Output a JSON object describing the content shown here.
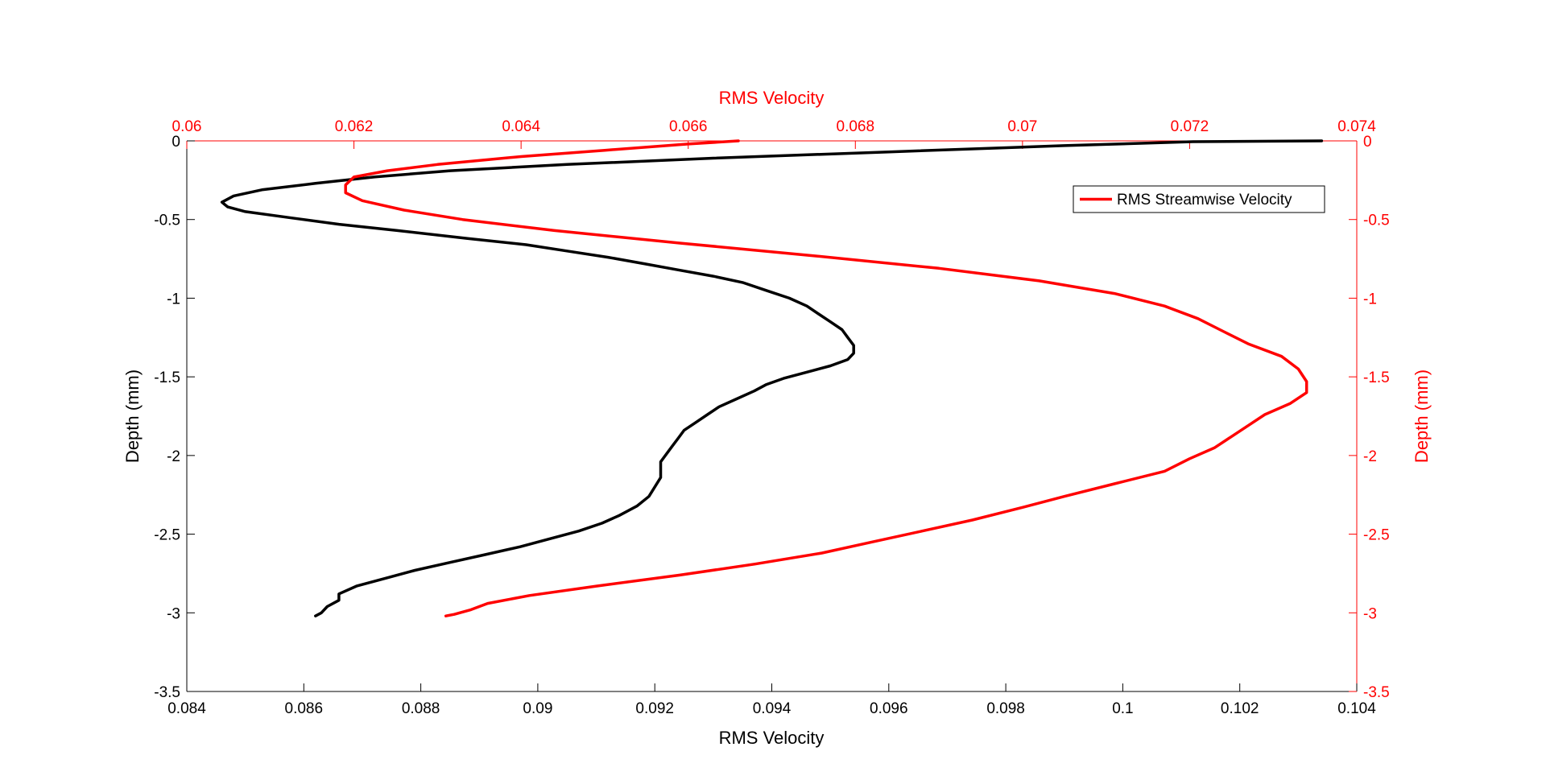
{
  "chart_data": {
    "type": "line",
    "grid": false,
    "legend": {
      "position": "top-right",
      "entries": [
        "RMS Streamwise Velocity"
      ]
    },
    "axes": {
      "bottom": {
        "label": "RMS Velocity",
        "range": [
          0.084,
          0.104
        ],
        "ticks": [
          "0.084",
          "0.086",
          "0.088",
          "0.09",
          "0.092",
          "0.094",
          "0.096",
          "0.098",
          "0.1",
          "0.102",
          "0.104"
        ],
        "color": "#000000"
      },
      "top": {
        "label": "RMS Velocity",
        "range": [
          0.06,
          0.074
        ],
        "ticks": [
          "0.06",
          "0.062",
          "0.064",
          "0.066",
          "0.068",
          "0.07",
          "0.072",
          "0.074"
        ],
        "color": "#ff0000"
      },
      "left": {
        "label": "Depth (mm)",
        "range": [
          -3.5,
          0
        ],
        "ticks": [
          "0",
          "-0.5",
          "-1",
          "-1.5",
          "-2",
          "-2.5",
          "-3",
          "-3.5"
        ],
        "color": "#000000"
      },
      "right": {
        "label": "Depth (mm)",
        "range": [
          -3.5,
          0
        ],
        "ticks": [
          "0",
          "-0.5",
          "-1",
          "-1.5",
          "-2",
          "-2.5",
          "-3",
          "-3.5"
        ],
        "color": "#ff0000"
      }
    },
    "series": [
      {
        "axis_x": "bottom",
        "axis_y": "left",
        "color": "#000000",
        "points": [
          [
            0.1034,
            0
          ],
          [
            0.1012,
            -0.005
          ],
          [
            0.099,
            -0.03
          ],
          [
            0.096,
            -0.07
          ],
          [
            0.093,
            -0.11
          ],
          [
            0.0905,
            -0.15
          ],
          [
            0.0885,
            -0.19
          ],
          [
            0.0872,
            -0.23
          ],
          [
            0.0862,
            -0.27
          ],
          [
            0.0853,
            -0.31
          ],
          [
            0.0848,
            -0.35
          ],
          [
            0.0846,
            -0.39
          ],
          [
            0.0847,
            -0.42
          ],
          [
            0.085,
            -0.45
          ],
          [
            0.0858,
            -0.49
          ],
          [
            0.0866,
            -0.53
          ],
          [
            0.0876,
            -0.57
          ],
          [
            0.0888,
            -0.62
          ],
          [
            0.0898,
            -0.66
          ],
          [
            0.0905,
            -0.7
          ],
          [
            0.0912,
            -0.74
          ],
          [
            0.0918,
            -0.78
          ],
          [
            0.0924,
            -0.82
          ],
          [
            0.093,
            -0.86
          ],
          [
            0.0935,
            -0.9
          ],
          [
            0.0939,
            -0.95
          ],
          [
            0.0943,
            -1.0
          ],
          [
            0.0946,
            -1.05
          ],
          [
            0.0948,
            -1.1
          ],
          [
            0.095,
            -1.15
          ],
          [
            0.0952,
            -1.2
          ],
          [
            0.0953,
            -1.25
          ],
          [
            0.0954,
            -1.3
          ],
          [
            0.0954,
            -1.35
          ],
          [
            0.0953,
            -1.39
          ],
          [
            0.095,
            -1.43
          ],
          [
            0.0946,
            -1.47
          ],
          [
            0.0942,
            -1.51
          ],
          [
            0.0939,
            -1.55
          ],
          [
            0.0937,
            -1.59
          ],
          [
            0.0934,
            -1.64
          ],
          [
            0.0931,
            -1.69
          ],
          [
            0.0929,
            -1.74
          ],
          [
            0.0927,
            -1.79
          ],
          [
            0.0925,
            -1.84
          ],
          [
            0.0924,
            -1.89
          ],
          [
            0.0923,
            -1.94
          ],
          [
            0.0922,
            -1.99
          ],
          [
            0.0921,
            -2.04
          ],
          [
            0.0921,
            -2.09
          ],
          [
            0.0921,
            -2.14
          ],
          [
            0.092,
            -2.2
          ],
          [
            0.0919,
            -2.26
          ],
          [
            0.0917,
            -2.32
          ],
          [
            0.0914,
            -2.38
          ],
          [
            0.0911,
            -2.43
          ],
          [
            0.0907,
            -2.48
          ],
          [
            0.0902,
            -2.53
          ],
          [
            0.0897,
            -2.58
          ],
          [
            0.0891,
            -2.63
          ],
          [
            0.0885,
            -2.68
          ],
          [
            0.0879,
            -2.73
          ],
          [
            0.0874,
            -2.78
          ],
          [
            0.0869,
            -2.83
          ],
          [
            0.0866,
            -2.88
          ],
          [
            0.0866,
            -2.92
          ],
          [
            0.0864,
            -2.96
          ],
          [
            0.0863,
            -3.0
          ],
          [
            0.0862,
            -3.02
          ]
        ]
      },
      {
        "axis_x": "top",
        "axis_y": "left",
        "color": "#ff0000",
        "name": "RMS Streamwise Velocity",
        "points": [
          [
            0.0666,
            0
          ],
          [
            0.066,
            -0.02
          ],
          [
            0.065,
            -0.06
          ],
          [
            0.064,
            -0.1
          ],
          [
            0.063,
            -0.15
          ],
          [
            0.0624,
            -0.19
          ],
          [
            0.062,
            -0.23
          ],
          [
            0.0619,
            -0.28
          ],
          [
            0.0619,
            -0.33
          ],
          [
            0.0621,
            -0.38
          ],
          [
            0.0626,
            -0.44
          ],
          [
            0.0633,
            -0.5
          ],
          [
            0.0644,
            -0.57
          ],
          [
            0.0659,
            -0.65
          ],
          [
            0.0675,
            -0.73
          ],
          [
            0.069,
            -0.81
          ],
          [
            0.0702,
            -0.89
          ],
          [
            0.0711,
            -0.97
          ],
          [
            0.0717,
            -1.05
          ],
          [
            0.0721,
            -1.13
          ],
          [
            0.0724,
            -1.21
          ],
          [
            0.0727,
            -1.29
          ],
          [
            0.0731,
            -1.37
          ],
          [
            0.0733,
            -1.45
          ],
          [
            0.0734,
            -1.53
          ],
          [
            0.0734,
            -1.6
          ],
          [
            0.0732,
            -1.67
          ],
          [
            0.0729,
            -1.74
          ],
          [
            0.0727,
            -1.81
          ],
          [
            0.0725,
            -1.88
          ],
          [
            0.0723,
            -1.95
          ],
          [
            0.072,
            -2.02
          ],
          [
            0.0717,
            -2.1
          ],
          [
            0.0711,
            -2.18
          ],
          [
            0.0705,
            -2.26
          ],
          [
            0.07,
            -2.33
          ],
          [
            0.0694,
            -2.41
          ],
          [
            0.0688,
            -2.48
          ],
          [
            0.0682,
            -2.55
          ],
          [
            0.0676,
            -2.62
          ],
          [
            0.0668,
            -2.69
          ],
          [
            0.0659,
            -2.76
          ],
          [
            0.0649,
            -2.83
          ],
          [
            0.0641,
            -2.89
          ],
          [
            0.0636,
            -2.94
          ],
          [
            0.0634,
            -2.98
          ],
          [
            0.0632,
            -3.01
          ],
          [
            0.0631,
            -3.02
          ]
        ]
      }
    ]
  }
}
